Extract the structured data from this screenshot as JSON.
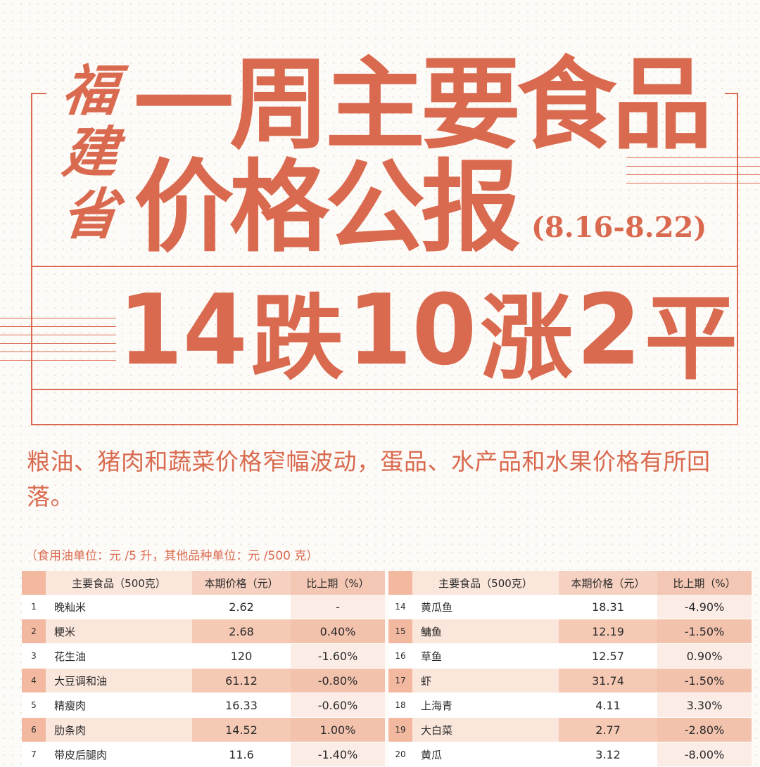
{
  "province_title": [
    "福",
    "建",
    "省"
  ],
  "title_line1": "一周主要食品",
  "title_line2": "价格公报",
  "date_range": "(8.16-8.22)",
  "headline": {
    "down_count": "14",
    "down_label": "跌",
    "up_count": "10",
    "up_label": "涨",
    "flat_count": "2",
    "flat_label": "平"
  },
  "summary": "粮油、猪肉和蔬菜价格窄幅波动，蛋品、水产品和水果价格有所回落。",
  "unit_note": "（食用油单位：元 ∕5 升，其他品种单位：元 ∕500 克）",
  "colors": {
    "accent": "#d96a4f",
    "header_bg": "#f7d4c4",
    "row_alt": "#f3c2ad"
  },
  "table_left": {
    "headers": [
      "主要食品（500克）",
      "本期价格（元）",
      "比上期（%）"
    ],
    "rows": [
      {
        "no": "1",
        "name": "晚籼米",
        "price": "2.62",
        "change": "-"
      },
      {
        "no": "2",
        "name": "粳米",
        "price": "2.68",
        "change": "0.40%"
      },
      {
        "no": "3",
        "name": "花生油",
        "price": "120",
        "change": "-1.60%"
      },
      {
        "no": "4",
        "name": "大豆调和油",
        "price": "61.12",
        "change": "-0.80%"
      },
      {
        "no": "5",
        "name": "精瘦肉",
        "price": "16.33",
        "change": "-0.60%"
      },
      {
        "no": "6",
        "name": "肋条肉",
        "price": "14.52",
        "change": "1.00%"
      },
      {
        "no": "7",
        "name": "带皮后腿肉",
        "price": "11.6",
        "change": "-1.40%"
      }
    ]
  },
  "table_right": {
    "headers": [
      "主要食品（500克）",
      "本期价格（元）",
      "比上期（%）"
    ],
    "rows": [
      {
        "no": "14",
        "name": "黄瓜鱼",
        "price": "18.31",
        "change": "-4.90%"
      },
      {
        "no": "15",
        "name": "鳙鱼",
        "price": "12.19",
        "change": "-1.50%"
      },
      {
        "no": "16",
        "name": "草鱼",
        "price": "12.57",
        "change": "0.90%"
      },
      {
        "no": "17",
        "name": "虾",
        "price": "31.74",
        "change": "-1.50%"
      },
      {
        "no": "18",
        "name": "上海青",
        "price": "4.11",
        "change": "3.30%"
      },
      {
        "no": "19",
        "name": "大白菜",
        "price": "2.77",
        "change": "-2.80%"
      },
      {
        "no": "20",
        "name": "黄瓜",
        "price": "3.12",
        "change": "-8.00%"
      }
    ]
  }
}
